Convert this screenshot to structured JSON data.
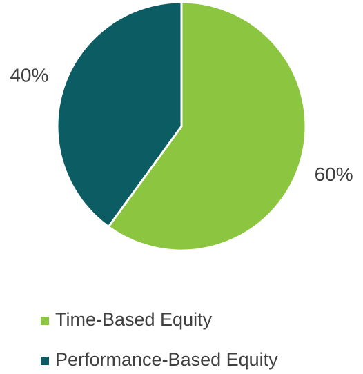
{
  "chart_data": {
    "type": "pie",
    "categories": [
      "Time-Based Equity",
      "Performance-Based Equity"
    ],
    "values": [
      60,
      40
    ],
    "value_labels": [
      "60%",
      "40%"
    ],
    "colors": [
      "#8cc641",
      "#0c5c63"
    ],
    "legend": "bottom"
  }
}
